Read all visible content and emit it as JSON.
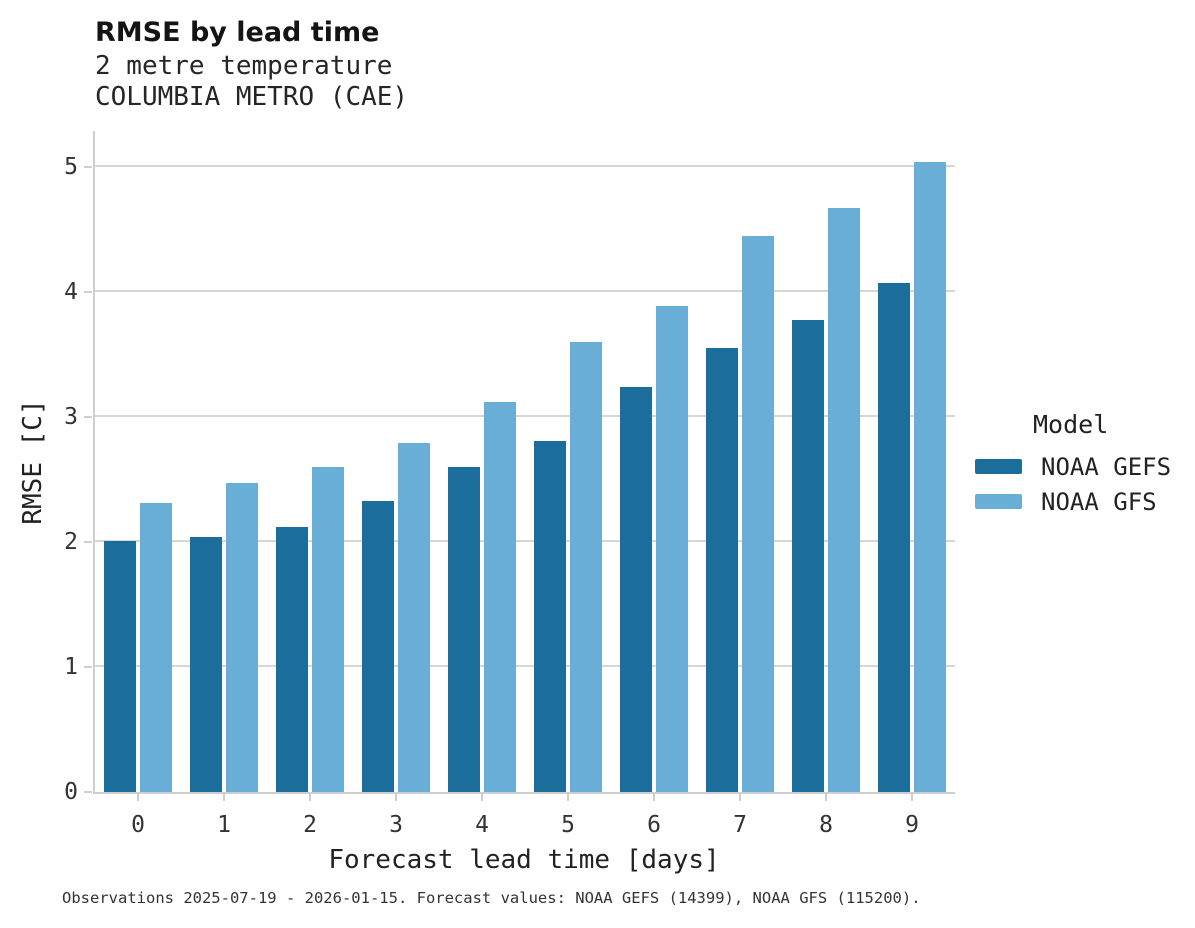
{
  "header": {
    "title": "RMSE by lead time",
    "subtitle_line1": "2 metre temperature",
    "subtitle_line2": "COLUMBIA METRO (CAE)"
  },
  "chart_data": {
    "type": "bar",
    "title": "RMSE by lead time",
    "subtitle": [
      "2 metre temperature",
      "COLUMBIA METRO (CAE)"
    ],
    "xlabel": "Forecast lead time [days]",
    "ylabel": "RMSE [C]",
    "categories": [
      "0",
      "1",
      "2",
      "3",
      "4",
      "5",
      "6",
      "7",
      "8",
      "9"
    ],
    "series": [
      {
        "name": "NOAA GEFS",
        "color": "#1b6d9c",
        "values": [
          2.01,
          2.04,
          2.12,
          2.33,
          2.6,
          2.81,
          3.24,
          3.55,
          3.78,
          4.07
        ]
      },
      {
        "name": "NOAA GFS",
        "color": "#69aed7",
        "values": [
          2.31,
          2.47,
          2.6,
          2.79,
          3.12,
          3.6,
          3.89,
          4.45,
          4.67,
          5.04
        ]
      }
    ],
    "ylim": [
      0,
      5.288
    ],
    "yticks": [
      0,
      1,
      2,
      3,
      4,
      5
    ],
    "grid": "horizontal",
    "legend_title": "Model",
    "legend_position": "right",
    "grid_color": "#d6d6d6",
    "axis_color": "#cfcfcf"
  },
  "footer": {
    "caption": "Observations 2025-07-19 - 2026-01-15. Forecast values: NOAA GEFS (14399), NOAA GFS (115200)."
  }
}
